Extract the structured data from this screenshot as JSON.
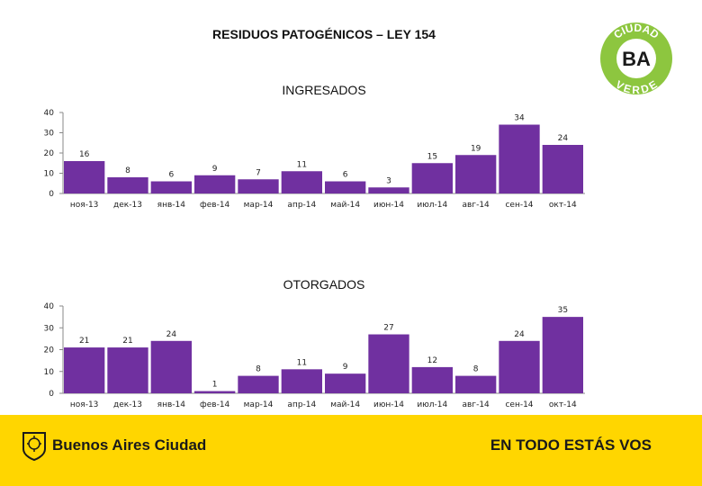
{
  "header": {
    "title": "RESIDUOS PATOGÉNICOS – LEY 154"
  },
  "logo": {
    "top_text": "CIUDAD",
    "center_text": "BA",
    "bottom_text": "VERDE"
  },
  "footer": {
    "left_text": "Buenos Aires Ciudad",
    "right_text": "EN TODO ESTÁS VOS"
  },
  "colors": {
    "bar": "#7030a0",
    "footer_bg": "#ffd600",
    "logo_green": "#8dc63f"
  },
  "chart_data": [
    {
      "type": "bar",
      "title": "INGRESADOS",
      "categories": [
        "ноя-13",
        "дек-13",
        "янв-14",
        "фев-14",
        "мар-14",
        "апр-14",
        "май-14",
        "июн-14",
        "июл-14",
        "авг-14",
        "сен-14",
        "окт-14"
      ],
      "values": [
        16,
        8,
        6,
        9,
        7,
        11,
        6,
        3,
        15,
        19,
        34,
        24
      ],
      "ylim": [
        0,
        40
      ],
      "yticks": [
        "0",
        "10",
        "20",
        "30",
        "40"
      ],
      "xlabel": "",
      "ylabel": ""
    },
    {
      "type": "bar",
      "title": "OTORGADOS",
      "categories": [
        "ноя-13",
        "дек-13",
        "янв-14",
        "фев-14",
        "мар-14",
        "апр-14",
        "май-14",
        "июн-14",
        "июл-14",
        "авг-14",
        "сен-14",
        "окт-14"
      ],
      "values": [
        21,
        21,
        24,
        1,
        8,
        11,
        9,
        27,
        12,
        8,
        24,
        35
      ],
      "ylim": [
        0,
        40
      ],
      "yticks": [
        "0",
        "10",
        "20",
        "30",
        "40"
      ],
      "xlabel": "",
      "ylabel": ""
    }
  ]
}
